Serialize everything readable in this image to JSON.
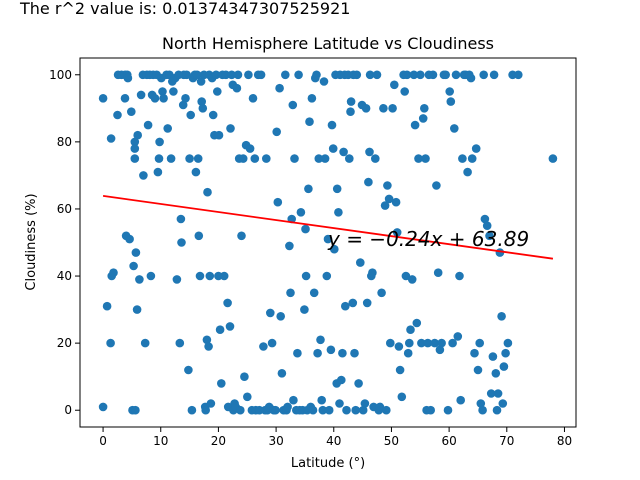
{
  "header_text": "The r^2 value is: 0.013743473075259​21",
  "chart_data": {
    "type": "scatter",
    "title": "North Hemisphere Latitude vs Cloudiness",
    "xlabel": "Latitude (°)",
    "ylabel": "Cloudiness (%)",
    "xlim": [
      -4,
      82
    ],
    "ylim": [
      -5,
      105
    ],
    "x_ticks": [
      0,
      10,
      20,
      30,
      40,
      50,
      60,
      70,
      80
    ],
    "y_ticks": [
      0,
      20,
      40,
      60,
      80,
      100
    ],
    "grid": false,
    "point_color": "#1f77b4",
    "line_color": "#ff0000",
    "annotation_color": "#ff7f7f",
    "regression": {
      "slope": -0.24,
      "intercept": 63.89,
      "x_range": [
        0,
        78
      ]
    },
    "annotation": {
      "text": "y = −0.24x + 63.89",
      "x": 39,
      "y": 49
    },
    "points": [
      [
        0,
        93
      ],
      [
        0,
        1
      ],
      [
        0.7,
        31
      ],
      [
        1.3,
        20
      ],
      [
        1.4,
        81
      ],
      [
        1.5,
        40
      ],
      [
        1.8,
        41
      ],
      [
        2.5,
        88
      ],
      [
        2.6,
        100
      ],
      [
        3.2,
        100
      ],
      [
        3.8,
        100
      ],
      [
        3.8,
        93
      ],
      [
        4,
        52
      ],
      [
        4.2,
        100
      ],
      [
        4.3,
        99
      ],
      [
        4.6,
        51
      ],
      [
        4.9,
        89
      ],
      [
        5.1,
        0
      ],
      [
        5.3,
        43
      ],
      [
        5.5,
        80
      ],
      [
        5.5,
        78
      ],
      [
        5.5,
        75
      ],
      [
        5.6,
        0
      ],
      [
        5.7,
        47
      ],
      [
        5.9,
        30
      ],
      [
        6,
        82
      ],
      [
        6.3,
        39
      ],
      [
        6.6,
        94
      ],
      [
        6.9,
        100
      ],
      [
        7,
        70
      ],
      [
        7.3,
        20
      ],
      [
        7.6,
        100
      ],
      [
        7.8,
        85
      ],
      [
        8.1,
        100
      ],
      [
        8.3,
        40
      ],
      [
        8.5,
        94
      ],
      [
        8.7,
        100
      ],
      [
        9,
        93
      ],
      [
        9.3,
        100
      ],
      [
        9.5,
        71
      ],
      [
        9.7,
        75
      ],
      [
        9.8,
        80
      ],
      [
        10.1,
        99
      ],
      [
        10.3,
        95
      ],
      [
        10.5,
        93
      ],
      [
        11,
        100
      ],
      [
        11.2,
        84
      ],
      [
        11.5,
        100
      ],
      [
        11.8,
        75
      ],
      [
        12,
        98
      ],
      [
        12.2,
        95
      ],
      [
        12.5,
        99
      ],
      [
        12.8,
        39
      ],
      [
        13.1,
        100
      ],
      [
        13.3,
        20
      ],
      [
        13.5,
        57
      ],
      [
        13.6,
        50
      ],
      [
        13.9,
        91
      ],
      [
        14,
        100
      ],
      [
        14.3,
        93
      ],
      [
        14.5,
        100
      ],
      [
        14.8,
        12
      ],
      [
        15,
        75
      ],
      [
        15.2,
        88
      ],
      [
        15.4,
        0
      ],
      [
        15.6,
        99
      ],
      [
        15.9,
        100
      ],
      [
        16.1,
        71
      ],
      [
        16.3,
        100
      ],
      [
        16.5,
        75
      ],
      [
        16.6,
        52
      ],
      [
        16.8,
        40
      ],
      [
        17,
        98
      ],
      [
        17.1,
        92
      ],
      [
        17.3,
        90
      ],
      [
        17.5,
        100
      ],
      [
        17.7,
        1
      ],
      [
        17.8,
        0
      ],
      [
        18,
        21
      ],
      [
        18.1,
        65
      ],
      [
        18.3,
        19
      ],
      [
        18.4,
        100
      ],
      [
        18.5,
        40
      ],
      [
        18.7,
        2
      ],
      [
        18.9,
        99
      ],
      [
        19.1,
        88
      ],
      [
        19.3,
        82
      ],
      [
        19.6,
        100
      ],
      [
        19.8,
        95
      ],
      [
        20,
        40
      ],
      [
        20.1,
        82
      ],
      [
        20.3,
        24
      ],
      [
        20.5,
        8
      ],
      [
        20.7,
        100
      ],
      [
        21,
        40
      ],
      [
        21.3,
        100
      ],
      [
        21.6,
        32
      ],
      [
        21.7,
        1
      ],
      [
        22,
        25
      ],
      [
        22.1,
        84
      ],
      [
        22.3,
        100
      ],
      [
        22.5,
        97
      ],
      [
        22.6,
        0
      ],
      [
        22.8,
        2
      ],
      [
        23,
        1
      ],
      [
        23.2,
        96
      ],
      [
        23.4,
        100
      ],
      [
        23.6,
        75
      ],
      [
        23.8,
        0
      ],
      [
        24,
        52
      ],
      [
        24.3,
        75
      ],
      [
        24.5,
        10
      ],
      [
        24.8,
        79
      ],
      [
        25,
        4
      ],
      [
        25.2,
        100
      ],
      [
        25.5,
        78
      ],
      [
        25.8,
        0
      ],
      [
        26,
        93
      ],
      [
        26.3,
        75
      ],
      [
        26.5,
        0
      ],
      [
        26.9,
        100
      ],
      [
        27.1,
        0
      ],
      [
        27.4,
        100
      ],
      [
        27.8,
        19
      ],
      [
        28.1,
        0
      ],
      [
        28.3,
        75
      ],
      [
        28.5,
        0
      ],
      [
        28.8,
        1
      ],
      [
        29,
        29
      ],
      [
        29.3,
        20
      ],
      [
        29.6,
        0
      ],
      [
        29.9,
        0
      ],
      [
        30.1,
        83
      ],
      [
        30.3,
        62
      ],
      [
        30.6,
        96
      ],
      [
        30.8,
        28
      ],
      [
        31,
        11
      ],
      [
        31.3,
        0
      ],
      [
        31.6,
        100
      ],
      [
        31.8,
        0
      ],
      [
        32,
        1
      ],
      [
        32.3,
        49
      ],
      [
        32.5,
        35
      ],
      [
        32.7,
        57
      ],
      [
        32.9,
        91
      ],
      [
        33,
        3
      ],
      [
        33.2,
        75
      ],
      [
        33.5,
        0
      ],
      [
        33.7,
        17
      ],
      [
        33.9,
        100
      ],
      [
        34.1,
        0
      ],
      [
        34.3,
        59
      ],
      [
        34.6,
        0
      ],
      [
        34.9,
        30
      ],
      [
        35.1,
        54
      ],
      [
        35.2,
        40
      ],
      [
        35.4,
        0
      ],
      [
        35.6,
        66
      ],
      [
        35.8,
        86
      ],
      [
        36,
        1
      ],
      [
        36.2,
        93
      ],
      [
        36.4,
        0
      ],
      [
        36.6,
        35
      ],
      [
        36.8,
        99
      ],
      [
        37,
        100
      ],
      [
        37.2,
        17
      ],
      [
        37.4,
        75
      ],
      [
        37.7,
        21
      ],
      [
        37.9,
        3
      ],
      [
        38.1,
        0
      ],
      [
        38.3,
        98
      ],
      [
        38.5,
        75
      ],
      [
        38.8,
        40
      ],
      [
        39,
        51
      ],
      [
        39.2,
        0
      ],
      [
        39.5,
        18
      ],
      [
        39.7,
        85
      ],
      [
        39.9,
        78
      ],
      [
        40.1,
        48
      ],
      [
        40.3,
        100
      ],
      [
        40.5,
        8
      ],
      [
        40.6,
        66
      ],
      [
        40.8,
        59
      ],
      [
        41,
        2
      ],
      [
        41.1,
        100
      ],
      [
        41.3,
        9
      ],
      [
        41.5,
        17
      ],
      [
        41.7,
        77
      ],
      [
        41.9,
        100
      ],
      [
        42,
        31
      ],
      [
        42.2,
        0
      ],
      [
        42.5,
        100
      ],
      [
        42.7,
        75
      ],
      [
        42.9,
        89
      ],
      [
        43,
        92
      ],
      [
        43.3,
        32
      ],
      [
        43.4,
        100
      ],
      [
        43.6,
        17
      ],
      [
        43.8,
        0
      ],
      [
        44,
        100
      ],
      [
        44.3,
        8
      ],
      [
        44.6,
        44
      ],
      [
        44.9,
        91
      ],
      [
        45.1,
        0
      ],
      [
        45.4,
        2
      ],
      [
        45.6,
        90
      ],
      [
        45.8,
        32
      ],
      [
        46,
        68
      ],
      [
        46.2,
        77
      ],
      [
        46.3,
        100
      ],
      [
        46.5,
        40
      ],
      [
        46.7,
        41
      ],
      [
        46.9,
        1
      ],
      [
        47.2,
        75
      ],
      [
        47.5,
        100
      ],
      [
        47.8,
        0
      ],
      [
        48,
        1
      ],
      [
        48.3,
        35
      ],
      [
        48.6,
        90
      ],
      [
        48.9,
        61
      ],
      [
        49.1,
        0
      ],
      [
        49.3,
        67
      ],
      [
        49.6,
        63
      ],
      [
        49.8,
        20
      ],
      [
        50.2,
        90
      ],
      [
        50.5,
        97
      ],
      [
        50.8,
        62
      ],
      [
        51,
        53
      ],
      [
        51.3,
        19
      ],
      [
        51.5,
        12
      ],
      [
        51.8,
        4
      ],
      [
        52.1,
        100
      ],
      [
        52.3,
        95
      ],
      [
        52.5,
        40
      ],
      [
        52.7,
        100
      ],
      [
        52.9,
        17
      ],
      [
        53.1,
        20
      ],
      [
        53.3,
        24
      ],
      [
        53.6,
        39
      ],
      [
        53.9,
        100
      ],
      [
        54.1,
        85
      ],
      [
        54.4,
        26
      ],
      [
        54.7,
        75
      ],
      [
        55,
        100
      ],
      [
        55.2,
        20
      ],
      [
        55.5,
        87
      ],
      [
        55.7,
        90
      ],
      [
        55.9,
        75
      ],
      [
        56.1,
        0
      ],
      [
        56.3,
        20
      ],
      [
        56.5,
        100
      ],
      [
        56.8,
        0
      ],
      [
        57.2,
        100
      ],
      [
        57.5,
        20
      ],
      [
        57.8,
        67
      ],
      [
        58.1,
        41
      ],
      [
        58.4,
        18
      ],
      [
        58.7,
        20
      ],
      [
        59.1,
        100
      ],
      [
        59.4,
        100
      ],
      [
        59.8,
        0
      ],
      [
        60.1,
        95
      ],
      [
        60.3,
        92
      ],
      [
        60.6,
        20
      ],
      [
        60.9,
        84
      ],
      [
        61.2,
        100
      ],
      [
        61.5,
        22
      ],
      [
        61.8,
        40
      ],
      [
        62,
        3
      ],
      [
        62.3,
        75
      ],
      [
        62.6,
        100
      ],
      [
        62.9,
        100
      ],
      [
        63.2,
        71
      ],
      [
        63.5,
        100
      ],
      [
        63.8,
        99
      ],
      [
        64,
        75
      ],
      [
        64.4,
        17
      ],
      [
        64.7,
        78
      ],
      [
        65,
        12
      ],
      [
        65.3,
        20
      ],
      [
        65.5,
        2
      ],
      [
        65.8,
        0
      ],
      [
        66,
        100
      ],
      [
        66.2,
        57
      ],
      [
        66.6,
        55
      ],
      [
        67,
        52
      ],
      [
        67.3,
        5
      ],
      [
        67.6,
        16
      ],
      [
        67.8,
        100
      ],
      [
        68.1,
        11
      ],
      [
        68.3,
        0
      ],
      [
        68.5,
        5
      ],
      [
        68.8,
        47
      ],
      [
        69.1,
        28
      ],
      [
        69.3,
        2
      ],
      [
        69.5,
        13
      ],
      [
        69.8,
        17
      ],
      [
        70.2,
        20
      ],
      [
        71,
        100
      ],
      [
        72,
        100
      ],
      [
        78,
        75
      ]
    ]
  }
}
